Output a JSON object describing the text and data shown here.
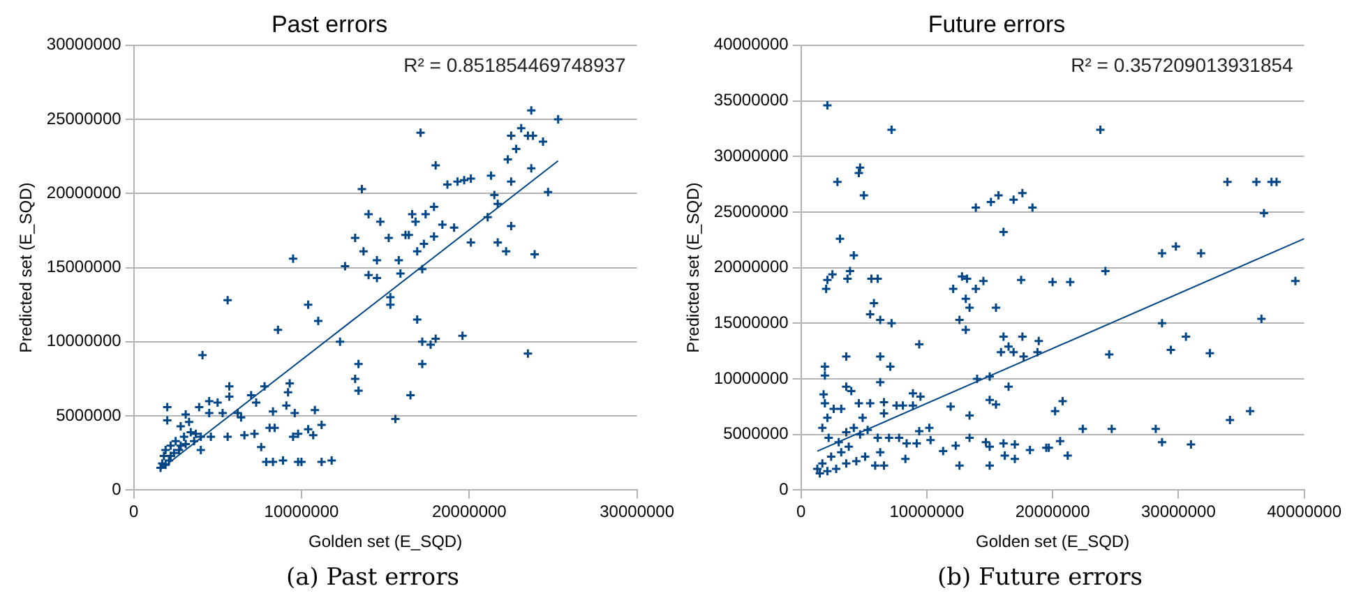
{
  "chart_data": [
    {
      "type": "scatter",
      "title": "Past errors",
      "xlabel": "Golden set (E_SQD)",
      "ylabel": "Predicted set (E_SQD)",
      "xlim": [
        0,
        30000000
      ],
      "xticks": [
        0,
        10000000,
        20000000,
        30000000
      ],
      "ylim": [
        0,
        30000000
      ],
      "yticks": [
        0,
        5000000,
        10000000,
        15000000,
        20000000,
        25000000,
        30000000
      ],
      "grid": "y",
      "legend": false,
      "series": [
        {
          "marker": "cross",
          "color": "#004586",
          "x": [
            23700000.0,
            25300000.0,
            23100000.0,
            22500000.0,
            23500000.0,
            23800000.0,
            24400000.0,
            22800000.0,
            22300000.0,
            23700000.0,
            21300000.0,
            22500000.0,
            19300000.0,
            19700000.0,
            20100000.0,
            18700000.0,
            18000000.0,
            17100000.0,
            24700000.0,
            21500000.0,
            21700000.0,
            21100000.0,
            22500000.0,
            21700000.0,
            22200000.0,
            23900000.0,
            23500000.0,
            20100000.0,
            19600000.0,
            19100000.0,
            18400000.0,
            17900000.0,
            17400000.0,
            16600000.0,
            16800000.0,
            16400000.0,
            16200000.0,
            17900000.0,
            17300000.0,
            16900000.0,
            17200000.0,
            13600000.0,
            14000000.0,
            14700000.0,
            15200000.0,
            13200000.0,
            13700000.0,
            14500000.0,
            15800000.0,
            12600000.0,
            14000000.0,
            14500000.0,
            15900000.0,
            15300000.0,
            15300000.0,
            9500000.0,
            16900000.0,
            17200000.0,
            18000000.0,
            17700000.0,
            17200000.0,
            12300000.0,
            10400000.0,
            11000000.0,
            8600000.0,
            5600000.0,
            13400000.0,
            13200000.0,
            13400000.0,
            16500000.0,
            15600000.0,
            4100000.0,
            9300000.0,
            9200000.0,
            9100000.0,
            7800000.0,
            7300000.0,
            7000000.0,
            5700000.0,
            5700000.0,
            5000000.0,
            4500000.0,
            3100000.0,
            2000000.0,
            2000000.0,
            8300000.0,
            9600000.0,
            10800000.0,
            11200000.0,
            10700000.0,
            10400000.0,
            9800000.0,
            9500000.0,
            8100000.0,
            8400000.0,
            7600000.0,
            7200000.0,
            6600000.0,
            5600000.0,
            7900000.0,
            8300000.0,
            8900000.0,
            9800000.0,
            10000000.0,
            11200000.0,
            11800000.0,
            6200000.0,
            5300000.0,
            6400000.0,
            4500000.0,
            3900000.0,
            3300000.0,
            2800000.0,
            3400000.0,
            3700000.0,
            4000000.0,
            4600000.0,
            3000000.0,
            2500000.0,
            2200000.0,
            1900000.0,
            1800000.0,
            1700000.0,
            1900000.0,
            1600000.0,
            2100000.0,
            2400000.0,
            2800000.0,
            3100000.0,
            3600000.0,
            4000000.0,
            2700000.0,
            2200000.0
          ],
          "values": [
            25600000.0,
            25000000.0,
            24400000.0,
            23900000.0,
            23900000.0,
            23900000.0,
            23500000.0,
            23000000.0,
            22300000.0,
            21700000.0,
            21200000.0,
            20800000.0,
            20800000.0,
            20900000.0,
            21000000.0,
            20600000.0,
            21900000.0,
            24100000.0,
            20100000.0,
            19900000.0,
            19300000.0,
            18400000.0,
            17800000.0,
            16700000.0,
            16100000.0,
            15900000.0,
            9200000.0,
            16700000.0,
            10400000.0,
            17700000.0,
            17900000.0,
            19100000.0,
            18600000.0,
            18600000.0,
            18100000.0,
            17200000.0,
            17200000.0,
            17100000.0,
            16600000.0,
            16100000.0,
            14900000.0,
            20300000.0,
            18600000.0,
            18100000.0,
            17000000.0,
            17000000.0,
            16100000.0,
            15500000.0,
            15500000.0,
            15100000.0,
            14500000.0,
            14300000.0,
            14600000.0,
            13000000.0,
            12500000.0,
            15600000.0,
            11500000.0,
            10000000.0,
            10200000.0,
            9800000.0,
            8500000.0,
            10000000.0,
            12500000.0,
            11400000.0,
            10800000.0,
            12800000.0,
            8500000.0,
            7500000.0,
            6700000.0,
            6400000.0,
            4800000.0,
            9100000.0,
            7200000.0,
            6600000.0,
            5700000.0,
            7000000.0,
            5900000.0,
            6400000.0,
            7000000.0,
            6300000.0,
            5900000.0,
            6000000.0,
            5100000.0,
            5600000.0,
            4700000.0,
            5300000.0,
            5200000.0,
            5400000.0,
            4400000.0,
            3700000.0,
            4100000.0,
            3800000.0,
            3600000.0,
            4200000.0,
            4200000.0,
            2900000.0,
            3800000.0,
            3700000.0,
            3600000.0,
            1900000.0,
            1900000.0,
            2000000.0,
            1900000.0,
            1900000.0,
            1900000.0,
            2000000.0,
            5200000.0,
            5200000.0,
            4900000.0,
            5200000.0,
            5600000.0,
            4600000.0,
            4300000.0,
            3900000.0,
            3800000.0,
            3600000.0,
            3600000.0,
            3600000.0,
            3300000.0,
            3000000.0,
            2700000.0,
            2300000.0,
            1800000.0,
            1700000.0,
            1500000.0,
            2000000.0,
            2500000.0,
            3000000.0,
            3100000.0,
            3300000.0,
            2700000.0,
            2700000.0,
            2300000.0
          ]
        },
        {
          "type": "line",
          "marker": "none",
          "color": "#004586",
          "x": [
            1600000.0,
            25300000.0
          ],
          "values": [
            1400000.0,
            22200000.0
          ]
        }
      ],
      "annotations": [
        "R² = 0.851854469748937",
        "(a) Past errors"
      ]
    },
    {
      "type": "scatter",
      "title": "Future errors",
      "xlabel": "Golden set (E_SQD)",
      "ylabel": "Predicted set (E_SQD)",
      "xlim": [
        0,
        40000000
      ],
      "xticks": [
        0,
        10000000,
        20000000,
        30000000,
        40000000
      ],
      "ylim": [
        0,
        40000000
      ],
      "yticks": [
        0,
        5000000,
        10000000,
        15000000,
        20000000,
        25000000,
        30000000,
        35000000,
        40000000
      ],
      "grid": "y",
      "legend": false,
      "series": [
        {
          "marker": "cross",
          "color": "#004586",
          "x": [
            2100000.0,
            7200000.0,
            23800000.0,
            2900000.0,
            4700000.0,
            4600000.0,
            5000000.0,
            33900000.0,
            36200000.0,
            37400000.0,
            37800000.0,
            36800000.0,
            13900000.0,
            15100000.0,
            15700000.0,
            16900000.0,
            17600000.0,
            18400000.0,
            16100000.0,
            3100000.0,
            4200000.0,
            2500000.0,
            2100000.0,
            2000000.0,
            3900000.0,
            3700000.0,
            5600000.0,
            6100000.0,
            5800000.0,
            5500000.0,
            6300000.0,
            7200000.0,
            28700000.0,
            29800000.0,
            31800000.0,
            24200000.0,
            17500000.0,
            20000000.0,
            21400000.0,
            39300000.0,
            12800000.0,
            13200000.0,
            14500000.0,
            12100000.0,
            13900000.0,
            13100000.0,
            13400000.0,
            15500000.0,
            12600000.0,
            13100000.0,
            28700000.0,
            36600000.0,
            30600000.0,
            29400000.0,
            32500000.0,
            24500000.0,
            16100000.0,
            17600000.0,
            18900000.0,
            16500000.0,
            15900000.0,
            16900000.0,
            17700000.0,
            18800000.0,
            9400000.0,
            3600000.0,
            6300000.0,
            7100000.0,
            1900000.0,
            1900000.0,
            6300000.0,
            14000000.0,
            15000000.0,
            16500000.0,
            3600000.0,
            4000000.0,
            8900000.0,
            9500000.0,
            15000000.0,
            15500000.0,
            11900000.0,
            20800000.0,
            20200000.0,
            13400000.0,
            22400000.0,
            24700000.0,
            28200000.0,
            28700000.0,
            31000000.0,
            34100000.0,
            35700000.0,
            20600000.0,
            21200000.0,
            19700000.0,
            19500000.0,
            18200000.0,
            17000000.0,
            16200000.0,
            17000000.0,
            16100000.0,
            15000000.0,
            15000000.0,
            14700000.0,
            13400000.0,
            12300000.0,
            12600000.0,
            11300000.0,
            10300000.0,
            10200000.0,
            9400000.0,
            9200000.0,
            8400000.0,
            8300000.0,
            7800000.0,
            6600000.0,
            5900000.0,
            6300000.0,
            7000000.0,
            8100000.0,
            8900000.0,
            7600000.0,
            6600000.0,
            6600000.0,
            5500000.0,
            4600000.0,
            4900000.0,
            3200000.0,
            2600000.0,
            1800000.0,
            1900000.0,
            2100000.0,
            1700000.0,
            2200000.0,
            3000000.0,
            3600000.0,
            4200000.0,
            4700000.0,
            5300000.0,
            6100000.0,
            3800000.0,
            3200000.0,
            2400000.0,
            1700000.0,
            1300000.0,
            2100000.0,
            2800000.0,
            3600000.0,
            4400000.0,
            5100000.0,
            1500000.0
          ],
          "values": [
            34600000.0,
            32400000.0,
            32400000.0,
            27700000.0,
            29000000.0,
            28500000.0,
            26500000.0,
            27700000.0,
            27700000.0,
            27700000.0,
            27700000.0,
            24900000.0,
            25400000.0,
            25900000.0,
            26500000.0,
            26100000.0,
            26700000.0,
            25400000.0,
            23200000.0,
            22600000.0,
            21100000.0,
            19400000.0,
            18900000.0,
            18100000.0,
            19700000.0,
            19000000.0,
            19000000.0,
            19000000.0,
            16800000.0,
            15800000.0,
            15300000.0,
            15000000.0,
            21300000.0,
            21900000.0,
            21300000.0,
            19700000.0,
            18900000.0,
            18700000.0,
            18700000.0,
            18800000.0,
            19200000.0,
            19000000.0,
            18800000.0,
            18100000.0,
            18100000.0,
            17200000.0,
            16400000.0,
            16400000.0,
            15300000.0,
            14400000.0,
            15000000.0,
            15400000.0,
            13800000.0,
            12600000.0,
            12300000.0,
            12200000.0,
            13800000.0,
            13800000.0,
            13400000.0,
            12900000.0,
            12400000.0,
            12400000.0,
            12000000.0,
            12400000.0,
            13100000.0,
            12000000.0,
            12000000.0,
            11100000.0,
            11100000.0,
            10300000.0,
            9700000.0,
            10000000.0,
            10200000.0,
            9300000.0,
            9300000.0,
            8900000.0,
            8700000.0,
            8400000.0,
            8100000.0,
            7700000.0,
            7500000.0,
            8000000.0,
            7100000.0,
            6700000.0,
            5500000.0,
            5500000.0,
            5500000.0,
            4300000.0,
            4100000.0,
            6300000.0,
            7100000.0,
            4400000.0,
            3100000.0,
            3800000.0,
            3800000.0,
            3600000.0,
            4100000.0,
            3100000.0,
            2800000.0,
            4200000.0,
            2200000.0,
            3900000.0,
            4300000.0,
            4700000.0,
            4000000.0,
            2200000.0,
            3500000.0,
            4500000.0,
            5600000.0,
            5300000.0,
            4200000.0,
            4200000.0,
            2800000.0,
            4700000.0,
            2200000.0,
            2200000.0,
            3400000.0,
            4700000.0,
            7600000.0,
            7600000.0,
            7600000.0,
            6900000.0,
            7900000.0,
            7800000.0,
            7800000.0,
            6500000.0,
            7300000.0,
            7300000.0,
            8600000.0,
            7800000.0,
            6500000.0,
            5600000.0,
            4700000.0,
            4300000.0,
            5200000.0,
            5600000.0,
            5000000.0,
            5400000.0,
            4700000.0,
            3900000.0,
            3400000.0,
            3000000.0,
            2400000.0,
            1900000.0,
            1700000.0,
            1900000.0,
            2400000.0,
            2600000.0,
            3000000.0,
            1500000.0
          ]
        },
        {
          "type": "line",
          "marker": "none",
          "color": "#004586",
          "x": [
            1300000.0,
            40000000.0
          ],
          "values": [
            3500000.0,
            22600000.0
          ]
        }
      ],
      "annotations": [
        "R² = 0.357209013931854",
        "(b) Future errors"
      ]
    }
  ]
}
